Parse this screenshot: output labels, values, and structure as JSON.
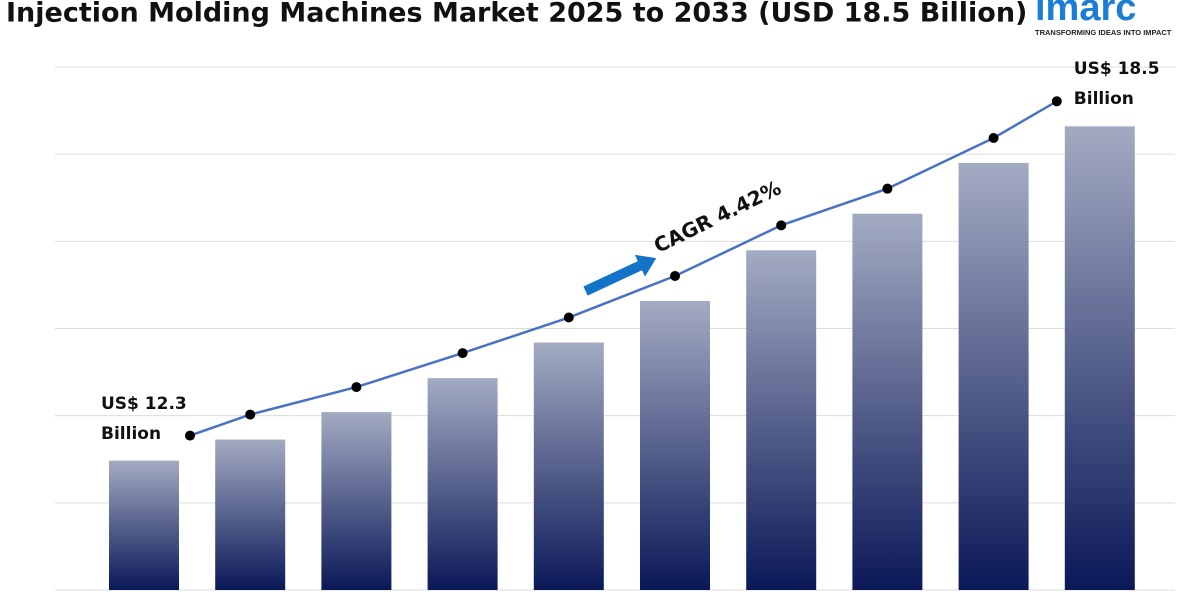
{
  "chart_data": {
    "type": "bar",
    "title": "Injection Molding Machines Market 2025 to 2033 (USD 18.5 Billion)",
    "categories": [
      null,
      null,
      null,
      null,
      null,
      null,
      null,
      null,
      null,
      null
    ],
    "values": [
      12.3,
      12.69,
      13.2,
      13.83,
      14.49,
      15.26,
      16.2,
      16.88,
      17.82,
      18.5
    ],
    "value_labels": [
      "US$ 12.3 Billion",
      null,
      null,
      null,
      null,
      null,
      null,
      null,
      null,
      "US$ 18.5 Billion"
    ],
    "annotation": "CAGR 4.42%",
    "ylim": [
      9.9,
      19.6
    ],
    "grid": true,
    "color_top": "#a3abc2",
    "color_bottom": "#0b1858",
    "line_color": "#4a72c4"
  },
  "logo": {
    "name": "imarc",
    "tagline": "TRANSFORMING IDEAS INTO IMPACT"
  }
}
